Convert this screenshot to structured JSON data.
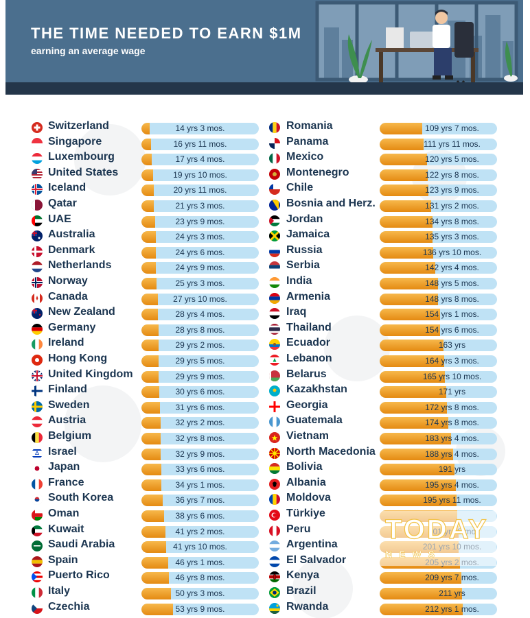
{
  "header": {
    "title": "THE TIME NEEDED TO EARN $1M",
    "subtitle": "earning an average wage",
    "bg_color": "#4b6f8e"
  },
  "watermark_logo": {
    "text": "TODAY",
    "subtext": "NEWS"
  },
  "colors": {
    "bar_fill": "#f0a22e",
    "bar_track": "#bfe2f5",
    "text": "#1b3550"
  },
  "chart_data": {
    "type": "bar",
    "orientation": "horizontal",
    "unit": "years",
    "title": "THE TIME NEEDED TO EARN $1M",
    "subtitle": "earning an average wage",
    "columns": [
      [
        {
          "country": "Switzerland",
          "label": "14 yrs 3 mos.",
          "value": 14.25,
          "flag": "ch"
        },
        {
          "country": "Singapore",
          "label": "16 yrs 11 mos.",
          "value": 16.92,
          "flag": "sg"
        },
        {
          "country": "Luxembourg",
          "label": "17 yrs 4 mos.",
          "value": 17.33,
          "flag": "lu"
        },
        {
          "country": "United States",
          "label": "19 yrs 10 mos.",
          "value": 19.83,
          "flag": "us"
        },
        {
          "country": "Iceland",
          "label": "20 yrs 11 mos.",
          "value": 20.92,
          "flag": "is"
        },
        {
          "country": "Qatar",
          "label": "21 yrs 3 mos.",
          "value": 21.25,
          "flag": "qa"
        },
        {
          "country": "UAE",
          "label": "23 yrs 9 mos.",
          "value": 23.75,
          "flag": "ae"
        },
        {
          "country": "Australia",
          "label": "24 yrs 3 mos.",
          "value": 24.25,
          "flag": "au"
        },
        {
          "country": "Denmark",
          "label": "24 yrs 6 mos.",
          "value": 24.5,
          "flag": "dk"
        },
        {
          "country": "Netherlands",
          "label": "24 yrs 9 mos.",
          "value": 24.75,
          "flag": "nl"
        },
        {
          "country": "Norway",
          "label": "25 yrs 3 mos.",
          "value": 25.25,
          "flag": "no"
        },
        {
          "country": "Canada",
          "label": "27 yrs 10 mos.",
          "value": 27.83,
          "flag": "ca"
        },
        {
          "country": "New Zealand",
          "label": "28 yrs 4 mos.",
          "value": 28.33,
          "flag": "nz"
        },
        {
          "country": "Germany",
          "label": "28 yrs 8 mos.",
          "value": 28.67,
          "flag": "de"
        },
        {
          "country": "Ireland",
          "label": "29 yrs 2 mos.",
          "value": 29.17,
          "flag": "ie"
        },
        {
          "country": "Hong Kong",
          "label": "29 yrs 5 mos.",
          "value": 29.42,
          "flag": "hk"
        },
        {
          "country": "United Kingdom",
          "label": "29 yrs 9 mos.",
          "value": 29.75,
          "flag": "gb"
        },
        {
          "country": "Finland",
          "label": "30 yrs 6 mos.",
          "value": 30.5,
          "flag": "fi"
        },
        {
          "country": "Sweden",
          "label": "31 yrs 6 mos.",
          "value": 31.5,
          "flag": "se"
        },
        {
          "country": "Austria",
          "label": "32 yrs 2 mos.",
          "value": 32.17,
          "flag": "at"
        },
        {
          "country": "Belgium",
          "label": "32 yrs 8 mos.",
          "value": 32.67,
          "flag": "be"
        },
        {
          "country": "Israel",
          "label": "32 yrs 9 mos.",
          "value": 32.75,
          "flag": "il"
        },
        {
          "country": "Japan",
          "label": "33 yrs 6 mos.",
          "value": 33.5,
          "flag": "jp"
        },
        {
          "country": "France",
          "label": "34 yrs 1 mos.",
          "value": 34.08,
          "flag": "fr"
        },
        {
          "country": "South Korea",
          "label": "36 yrs 7 mos.",
          "value": 36.58,
          "flag": "kr"
        },
        {
          "country": "Oman",
          "label": "38 yrs 6 mos.",
          "value": 38.5,
          "flag": "om"
        },
        {
          "country": "Kuwait",
          "label": "41 yrs 2 mos.",
          "value": 41.17,
          "flag": "kw"
        },
        {
          "country": "Saudi Arabia",
          "label": "41 yrs 10 mos.",
          "value": 41.83,
          "flag": "sa"
        },
        {
          "country": "Spain",
          "label": "46 yrs 1 mos.",
          "value": 46.08,
          "flag": "es"
        },
        {
          "country": "Puerto Rico",
          "label": "46 yrs 8 mos.",
          "value": 46.67,
          "flag": "pr"
        },
        {
          "country": "Italy",
          "label": "50 yrs 3 mos.",
          "value": 50.25,
          "flag": "it"
        },
        {
          "country": "Czechia",
          "label": "53 yrs 9 mos.",
          "value": 53.75,
          "flag": "cz"
        }
      ],
      [
        {
          "country": "Romania",
          "label": "109 yrs 7 mos.",
          "value": 109.58,
          "flag": "ro"
        },
        {
          "country": "Panama",
          "label": "111 yrs 11 mos.",
          "value": 111.92,
          "flag": "pa"
        },
        {
          "country": "Mexico",
          "label": "120 yrs 5 mos.",
          "value": 120.42,
          "flag": "mx"
        },
        {
          "country": "Montenegro",
          "label": "122 yrs 8 mos.",
          "value": 122.67,
          "flag": "me"
        },
        {
          "country": "Chile",
          "label": "123 yrs 9 mos.",
          "value": 123.75,
          "flag": "cl"
        },
        {
          "country": "Bosnia and Herz.",
          "label": "131 yrs 2 mos.",
          "value": 131.17,
          "flag": "ba"
        },
        {
          "country": "Jordan",
          "label": "134 yrs 8 mos.",
          "value": 134.67,
          "flag": "jo"
        },
        {
          "country": "Jamaica",
          "label": "135 yrs 3 mos.",
          "value": 135.25,
          "flag": "jm"
        },
        {
          "country": "Russia",
          "label": "136 yrs 10 mos.",
          "value": 136.83,
          "flag": "ru"
        },
        {
          "country": "Serbia",
          "label": "142 yrs 4 mos.",
          "value": 142.33,
          "flag": "rs"
        },
        {
          "country": "India",
          "label": "148 yrs 5 mos.",
          "value": 148.42,
          "flag": "in"
        },
        {
          "country": "Armenia",
          "label": "148 yrs 8 mos.",
          "value": 148.67,
          "flag": "am"
        },
        {
          "country": "Iraq",
          "label": "154 yrs 1 mos.",
          "value": 154.08,
          "flag": "iq"
        },
        {
          "country": "Thailand",
          "label": "154 yrs 6 mos.",
          "value": 154.5,
          "flag": "th"
        },
        {
          "country": "Ecuador",
          "label": "163 yrs",
          "value": 163,
          "flag": "ec"
        },
        {
          "country": "Lebanon",
          "label": "164 yrs 3 mos.",
          "value": 164.25,
          "flag": "lb"
        },
        {
          "country": "Belarus",
          "label": "165 yrs 10 mos.",
          "value": 165.83,
          "flag": "by"
        },
        {
          "country": "Kazakhstan",
          "label": "171 yrs",
          "value": 171,
          "flag": "kz"
        },
        {
          "country": "Georgia",
          "label": "172 yrs 8 mos.",
          "value": 172.67,
          "flag": "ge"
        },
        {
          "country": "Guatemala",
          "label": "174 yrs 8 mos.",
          "value": 174.67,
          "flag": "gt"
        },
        {
          "country": "Vietnam",
          "label": "183 yrs 4 mos.",
          "value": 183.33,
          "flag": "vn"
        },
        {
          "country": "North Macedonia",
          "label": "188 yrs 4 mos.",
          "value": 188.33,
          "flag": "mk"
        },
        {
          "country": "Bolivia",
          "label": "191 yrs",
          "value": 191,
          "flag": "bo"
        },
        {
          "country": "Albania",
          "label": "195 yrs 4 mos.",
          "value": 195.33,
          "flag": "al"
        },
        {
          "country": "Moldova",
          "label": "195 yrs 11 mos.",
          "value": 195.92,
          "flag": "md"
        },
        {
          "country": "Türkiye",
          "label": "",
          "value": 198,
          "flag": "tr"
        },
        {
          "country": "Peru",
          "label": "201 yrs 8 mo",
          "value": 201.67,
          "flag": "pe"
        },
        {
          "country": "Argentina",
          "label": "201 yrs 10 mos.",
          "value": 201.83,
          "flag": "ar"
        },
        {
          "country": "El Salvador",
          "label": "205 yrs 2 mos.",
          "value": 205.17,
          "flag": "sv"
        },
        {
          "country": "Kenya",
          "label": "209 yrs 7 mos.",
          "value": 209.58,
          "flag": "ke"
        },
        {
          "country": "Brazil",
          "label": "211 yrs",
          "value": 211,
          "flag": "br"
        },
        {
          "country": "Rwanda",
          "label": "212 yrs 1 mos.",
          "value": 212.08,
          "flag": "rw"
        }
      ]
    ]
  }
}
